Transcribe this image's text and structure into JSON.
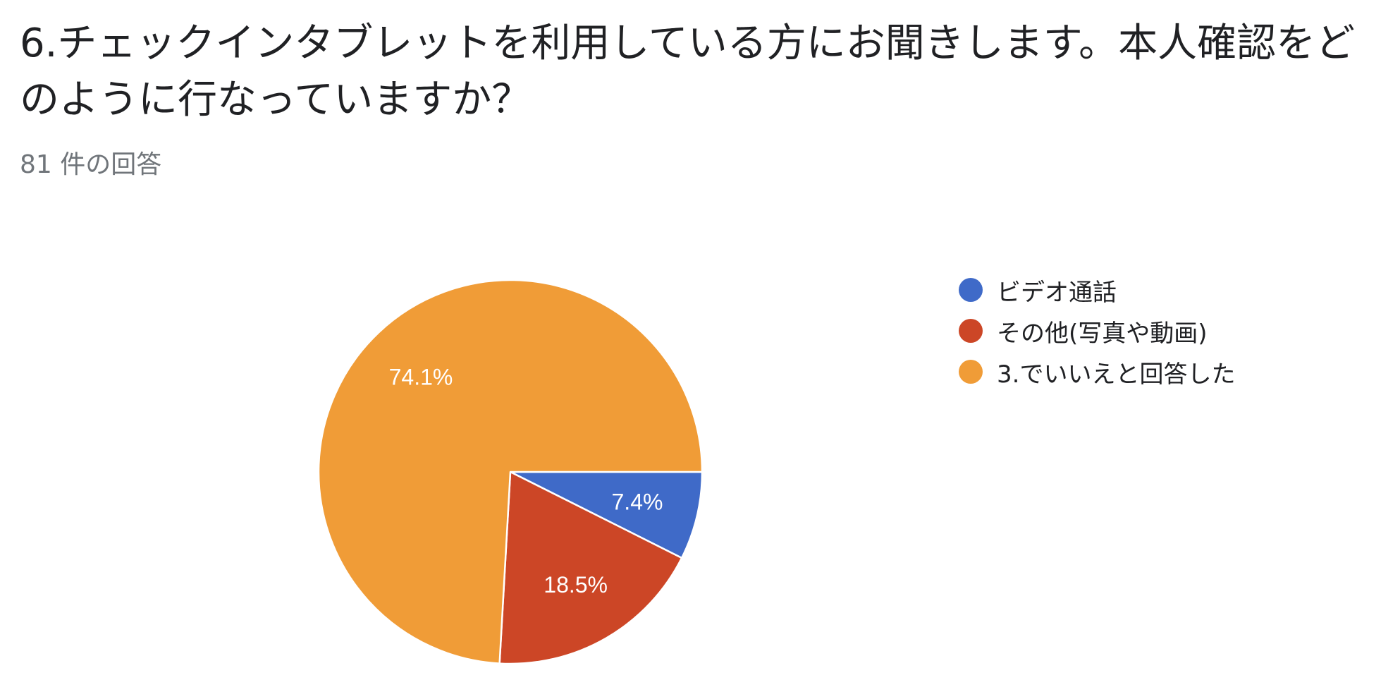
{
  "question": {
    "title": "6.チェックインタブレットを利用している方にお聞きします。本人確認をどのように行なっていますか？",
    "response_count": "81 件の回答"
  },
  "colors": {
    "video": "#3f6ac8",
    "other": "#cc4626",
    "no": "#f09c37"
  },
  "chart_data": {
    "type": "pie",
    "title": "",
    "slices": [
      {
        "label": "ビデオ通話",
        "value": 7.4,
        "display": "7.4%",
        "color": "#3f6ac8"
      },
      {
        "label": "その他(写真や動画)",
        "value": 18.5,
        "display": "18.5%",
        "color": "#cc4626"
      },
      {
        "label": "3.でいいえと回答した",
        "value": 74.1,
        "display": "74.1%",
        "color": "#f09c37"
      }
    ],
    "start_angle_deg": 90,
    "direction": "clockwise",
    "legend_position": "right"
  }
}
